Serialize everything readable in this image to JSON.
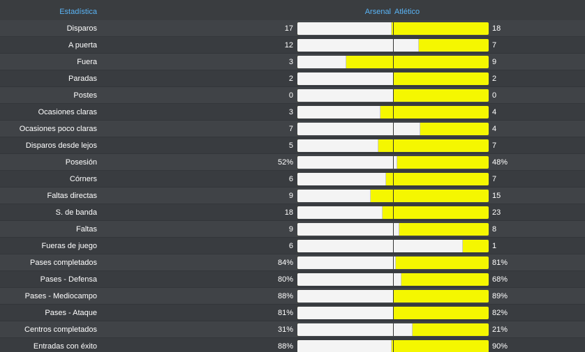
{
  "header": {
    "stat_label": "Estadística",
    "home_team": "Arsenal",
    "away_team": "Atlético"
  },
  "colors": {
    "home_bar": "#f4f4f4",
    "away_bar": "#f5f700",
    "header_text": "#5ab4f5"
  },
  "stats": [
    {
      "label": "Disparos",
      "home": "17",
      "away": "18",
      "home_share": 0.49
    },
    {
      "label": "A puerta",
      "home": "12",
      "away": "7",
      "home_share": 0.63
    },
    {
      "label": "Fuera",
      "home": "3",
      "away": "9",
      "home_share": 0.25
    },
    {
      "label": "Paradas",
      "home": "2",
      "away": "2",
      "home_share": 0.5
    },
    {
      "label": "Postes",
      "home": "0",
      "away": "0",
      "home_share": 0.5
    },
    {
      "label": "Ocasiones claras",
      "home": "3",
      "away": "4",
      "home_share": 0.43
    },
    {
      "label": "Ocasiones poco claras",
      "home": "7",
      "away": "4",
      "home_share": 0.64
    },
    {
      "label": "Disparos desde lejos",
      "home": "5",
      "away": "7",
      "home_share": 0.42
    },
    {
      "label": "Posesión",
      "home": "52%",
      "away": "48%",
      "home_share": 0.52
    },
    {
      "label": "Córners",
      "home": "6",
      "away": "7",
      "home_share": 0.46
    },
    {
      "label": "Faltas directas",
      "home": "9",
      "away": "15",
      "home_share": 0.38
    },
    {
      "label": "S. de banda",
      "home": "18",
      "away": "23",
      "home_share": 0.44
    },
    {
      "label": "Faltas",
      "home": "9",
      "away": "8",
      "home_share": 0.53
    },
    {
      "label": "Fueras de juego",
      "home": "6",
      "away": "1",
      "home_share": 0.86
    },
    {
      "label": "Pases completados",
      "home": "84%",
      "away": "81%",
      "home_share": 0.51
    },
    {
      "label": "Pases - Defensa",
      "home": "80%",
      "away": "68%",
      "home_share": 0.54
    },
    {
      "label": "Pases - Mediocampo",
      "home": "88%",
      "away": "89%",
      "home_share": 0.5
    },
    {
      "label": "Pases - Ataque",
      "home": "81%",
      "away": "82%",
      "home_share": 0.5
    },
    {
      "label": "Centros completados",
      "home": "31%",
      "away": "21%",
      "home_share": 0.6
    },
    {
      "label": "Entradas con éxito",
      "home": "88%",
      "away": "90%",
      "home_share": 0.49
    }
  ]
}
